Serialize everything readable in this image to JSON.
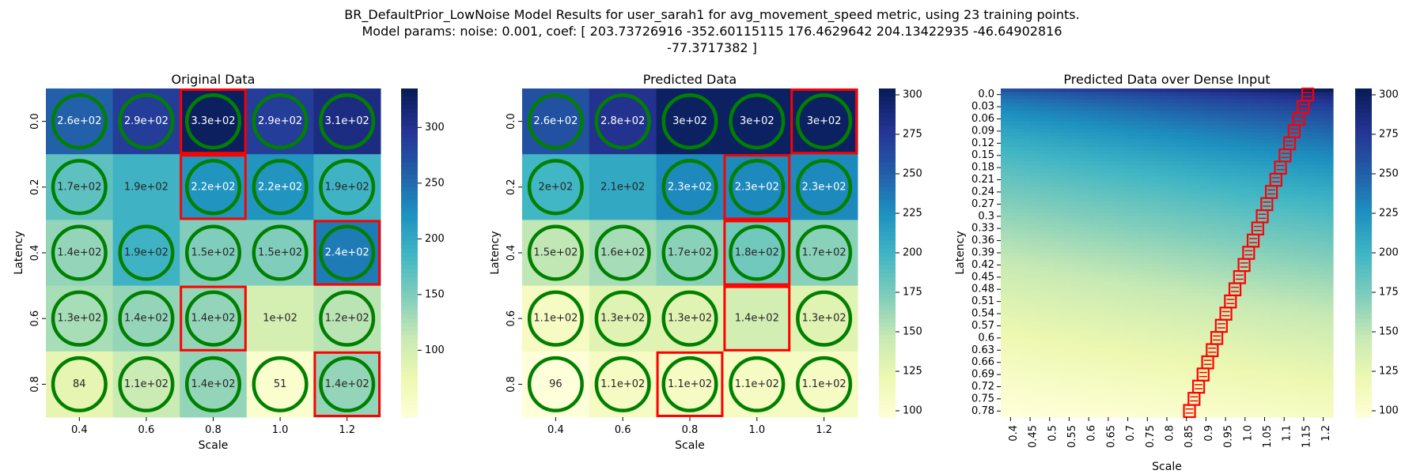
{
  "figure": {
    "title_lines": [
      "BR_DefaultPrior_LowNoise Model Results for user_sarah1 for avg_movement_speed metric, using 23 training points.",
      "Model params: noise: 0.001, coef: [ 203.73726916 -352.60115115  176.4629642    204.13422935  -46.64902816",
      "-77.3717382 ]"
    ]
  },
  "colormap": {
    "name": "YlGnBu",
    "stops": [
      "#ffffd9",
      "#edf8b1",
      "#c7e9b4",
      "#7fcdbb",
      "#41b6c4",
      "#1d91c0",
      "#225ea8",
      "#253494",
      "#081d58"
    ]
  },
  "marker_colors": {
    "circle": "#008000",
    "box": "#ff0000"
  },
  "chart_data": [
    {
      "type": "heatmap",
      "title": "Original Data",
      "xlabel": "Scale",
      "ylabel": "Latency",
      "x": [
        "0.4",
        "0.6",
        "0.8",
        "1.0",
        "1.2"
      ],
      "y": [
        "0.0",
        "0.2",
        "0.4",
        "0.6",
        "0.8"
      ],
      "values": [
        [
          260,
          290,
          330,
          290,
          310
        ],
        [
          170,
          190,
          220,
          220,
          190
        ],
        [
          140,
          190,
          150,
          150,
          240
        ],
        [
          130,
          140,
          140,
          100,
          120
        ],
        [
          84,
          110,
          140,
          51,
          140
        ]
      ],
      "labels": [
        [
          "2.6e+02",
          "2.9e+02",
          "3.3e+02",
          "2.9e+02",
          "3.1e+02"
        ],
        [
          "1.7e+02",
          "1.9e+02",
          "2.2e+02",
          "2.2e+02",
          "1.9e+02"
        ],
        [
          "1.4e+02",
          "1.9e+02",
          "1.5e+02",
          "1.5e+02",
          "2.4e+02"
        ],
        [
          "1.3e+02",
          "1.4e+02",
          "1.4e+02",
          "1e+02",
          "1.2e+02"
        ],
        [
          "84",
          "1.1e+02",
          "1.4e+02",
          "51",
          "1.4e+02"
        ]
      ],
      "circles": [
        [
          1,
          1,
          1,
          1,
          1
        ],
        [
          1,
          0,
          1,
          1,
          1
        ],
        [
          1,
          1,
          1,
          1,
          1
        ],
        [
          1,
          1,
          1,
          0,
          1
        ],
        [
          1,
          1,
          1,
          1,
          1
        ]
      ],
      "boxes": [
        [
          0,
          2
        ],
        [
          1,
          2
        ],
        [
          2,
          4
        ],
        [
          3,
          2
        ],
        [
          4,
          4
        ]
      ],
      "colorbar": {
        "min": 40,
        "max": 335,
        "ticks": [
          100,
          150,
          200,
          250,
          300
        ]
      }
    },
    {
      "type": "heatmap",
      "title": "Predicted Data",
      "xlabel": "Scale",
      "ylabel": "Latency",
      "x": [
        "0.4",
        "0.6",
        "0.8",
        "1.0",
        "1.2"
      ],
      "y": [
        "0.0",
        "0.2",
        "0.4",
        "0.6",
        "0.8"
      ],
      "values": [
        [
          260,
          280,
          300,
          300,
          300
        ],
        [
          200,
          210,
          230,
          230,
          230
        ],
        [
          150,
          160,
          170,
          180,
          170
        ],
        [
          110,
          130,
          130,
          140,
          130
        ],
        [
          96,
          110,
          110,
          110,
          110
        ]
      ],
      "labels": [
        [
          "2.6e+02",
          "2.8e+02",
          "3e+02",
          "3e+02",
          "3e+02"
        ],
        [
          "2e+02",
          "2.1e+02",
          "2.3e+02",
          "2.3e+02",
          "2.3e+02"
        ],
        [
          "1.5e+02",
          "1.6e+02",
          "1.7e+02",
          "1.8e+02",
          "1.7e+02"
        ],
        [
          "1.1e+02",
          "1.3e+02",
          "1.3e+02",
          "1.4e+02",
          "1.3e+02"
        ],
        [
          "96",
          "1.1e+02",
          "1.1e+02",
          "1.1e+02",
          "1.1e+02"
        ]
      ],
      "circles": [
        [
          1,
          1,
          1,
          1,
          1
        ],
        [
          1,
          0,
          1,
          1,
          1
        ],
        [
          1,
          1,
          1,
          1,
          1
        ],
        [
          1,
          1,
          1,
          0,
          1
        ],
        [
          1,
          1,
          1,
          1,
          1
        ]
      ],
      "boxes": [
        [
          0,
          4
        ],
        [
          1,
          3
        ],
        [
          2,
          3
        ],
        [
          3,
          3
        ],
        [
          4,
          2
        ]
      ],
      "colorbar": {
        "min": 96,
        "max": 304,
        "ticks": [
          100,
          125,
          150,
          175,
          200,
          225,
          250,
          275,
          300
        ]
      }
    },
    {
      "type": "heatmap",
      "title": "Predicted Data over Dense Input",
      "xlabel": "Scale",
      "ylabel": "Latency",
      "x": [
        "0.4",
        "0.45",
        "0.5",
        "0.55",
        "0.6",
        "0.65",
        "0.7",
        "0.75",
        "0.8",
        "0.85",
        "0.9",
        "0.95",
        "1.0",
        "1.05",
        "1.1",
        "1.15",
        "1.2"
      ],
      "y": [
        "0.0",
        "0.03",
        "0.06",
        "0.09",
        "0.12",
        "0.15",
        "0.18",
        "0.21",
        "0.24",
        "0.27",
        "0.3",
        "0.33",
        "0.36",
        "0.39",
        "0.42",
        "0.45",
        "0.48",
        "0.51",
        "0.54",
        "0.57",
        "0.6",
        "0.63",
        "0.66",
        "0.69",
        "0.72",
        "0.75",
        "0.78"
      ],
      "surface": {
        "corner_values": {
          "top_left": 260,
          "top_right": 304,
          "bottom_left": 96,
          "bottom_right": 110
        }
      },
      "colorbar": {
        "min": 96,
        "max": 304,
        "ticks": [
          100,
          125,
          150,
          175,
          200,
          225,
          250,
          275,
          300
        ]
      }
    }
  ]
}
